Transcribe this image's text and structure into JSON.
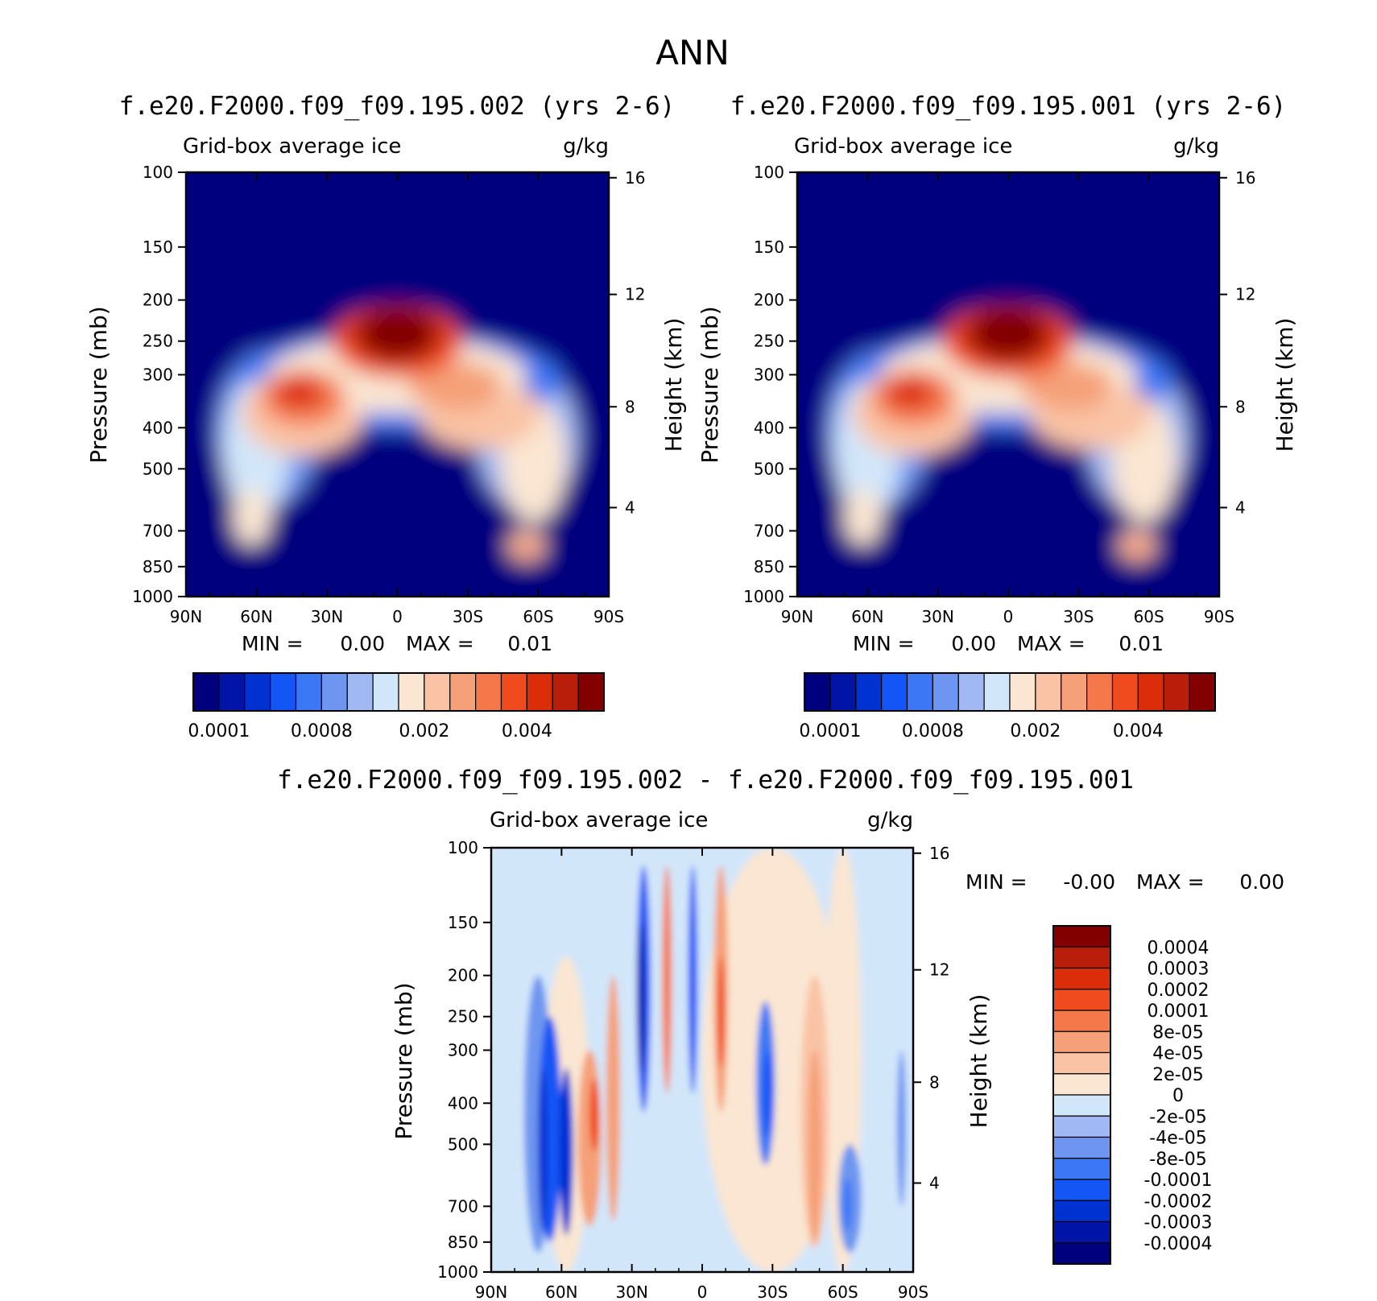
{
  "page": {
    "title": "ANN"
  },
  "chart_data": [
    {
      "id": "p1",
      "type": "contour",
      "title": "f.e20.F2000.f09_f09.195.002 (yrs 2-6)",
      "left_label": "Grid-box average ice",
      "right_label": "g/kg",
      "ylabel": "Pressure (mb)",
      "y2label": "Height (km)",
      "xticks": [
        "90N",
        "60N",
        "30N",
        "0",
        "30S",
        "60S",
        "90S"
      ],
      "xlim": [
        90,
        -90
      ],
      "yticks": [
        100,
        150,
        200,
        250,
        300,
        400,
        500,
        700,
        850,
        1000
      ],
      "ylim": [
        100,
        1000
      ],
      "y2ticks": [
        "16",
        "12",
        "8",
        "4"
      ],
      "stats": {
        "min_label": "MIN =",
        "min": "0.00",
        "max_label": "MAX =",
        "max": "0.01"
      },
      "colorbar_labels": [
        "0.0001",
        "0.0008",
        "0.002",
        "0.004"
      ]
    },
    {
      "id": "p2",
      "type": "contour",
      "title": "f.e20.F2000.f09_f09.195.001 (yrs 2-6)",
      "left_label": "Grid-box average ice",
      "right_label": "g/kg",
      "ylabel": "Pressure (mb)",
      "y2label": "Height (km)",
      "xticks": [
        "90N",
        "60N",
        "30N",
        "0",
        "30S",
        "60S",
        "90S"
      ],
      "xlim": [
        90,
        -90
      ],
      "yticks": [
        100,
        150,
        200,
        250,
        300,
        400,
        500,
        700,
        850,
        1000
      ],
      "ylim": [
        100,
        1000
      ],
      "y2ticks": [
        "16",
        "12",
        "8",
        "4"
      ],
      "stats": {
        "min_label": "MIN =",
        "min": "0.00",
        "max_label": "MAX =",
        "max": "0.01"
      },
      "colorbar_labels": [
        "0.0001",
        "0.0008",
        "0.002",
        "0.004"
      ]
    },
    {
      "id": "p3",
      "type": "contour",
      "title": "f.e20.F2000.f09_f09.195.002 - f.e20.F2000.f09_f09.195.001",
      "left_label": "Grid-box average ice",
      "right_label": "g/kg",
      "ylabel": "Pressure (mb)",
      "y2label": "Height (km)",
      "xticks": [
        "90N",
        "60N",
        "30N",
        "0",
        "30S",
        "60S",
        "90S"
      ],
      "xlim": [
        90,
        -90
      ],
      "yticks": [
        100,
        150,
        200,
        250,
        300,
        400,
        500,
        700,
        850,
        1000
      ],
      "ylim": [
        100,
        1000
      ],
      "y2ticks": [
        "16",
        "12",
        "8",
        "4"
      ],
      "stats": {
        "min_label": "MIN =",
        "min": "-0.00",
        "max_label": "MAX =",
        "max": "0.00"
      },
      "colorbar_labels": [
        "0.0004",
        "0.0003",
        "0.0002",
        "0.0001",
        "8e-05",
        "4e-05",
        "2e-05",
        "0",
        "-2e-05",
        "-4e-05",
        "-8e-05",
        "-0.0001",
        "-0.0002",
        "-0.0003",
        "-0.0004"
      ]
    }
  ],
  "colors": {
    "scale": [
      "#00007f",
      "#0014a8",
      "#0032d2",
      "#1455f5",
      "#3c78f5",
      "#6e96f0",
      "#a0b9f5",
      "#d2e6fa",
      "#fae6d2",
      "#fac3a5",
      "#f5a078",
      "#f5784b",
      "#f04b1e",
      "#dc2d0a",
      "#b91e0a",
      "#820000"
    ]
  }
}
